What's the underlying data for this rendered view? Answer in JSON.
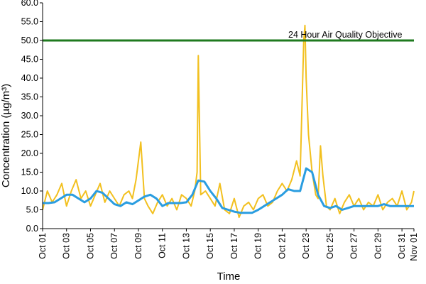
{
  "chart_data": {
    "type": "line",
    "title": "",
    "xlabel": "Time",
    "ylabel": "Concentration (µg/m³)",
    "ylim": [
      0,
      60
    ],
    "y_ticks": [
      "0.0",
      "5.0",
      "10.0",
      "15.0",
      "20.0",
      "25.0",
      "30.0",
      "35.0",
      "40.0",
      "45.0",
      "50.0",
      "55.0",
      "60.0"
    ],
    "x_ticks": [
      "Oct 01",
      "Oct 03",
      "Oct 05",
      "Oct 07",
      "Oct 09",
      "Oct 11",
      "Oct 13",
      "Oct 15",
      "Oct 17",
      "Oct 19",
      "Oct 21",
      "Oct 23",
      "Oct 25",
      "Oct 27",
      "Oct 29",
      "Oct 31",
      "Nov 01"
    ],
    "xlim": [
      "2013-10-01",
      "2013-11-01"
    ],
    "grid": false,
    "reference_line": {
      "label": "24 Hour Air Quality Objective",
      "value": 50,
      "color": "#1f7a1f"
    },
    "series": [
      {
        "name": "",
        "kind": "hourly",
        "color": "#f2c01f",
        "x_days": [
          0,
          0.4,
          0.8,
          1.2,
          1.6,
          2.0,
          2.4,
          2.8,
          3.2,
          3.6,
          4.0,
          4.4,
          4.8,
          5.2,
          5.6,
          6.0,
          6.4,
          6.8,
          7.2,
          7.5,
          7.8,
          8.2,
          8.5,
          8.8,
          9.2,
          9.6,
          10.0,
          10.4,
          10.8,
          11.2,
          11.6,
          12.0,
          12.4,
          12.7,
          12.9,
          13.0,
          13.2,
          13.6,
          14.0,
          14.4,
          14.8,
          15.2,
          15.6,
          16.0,
          16.4,
          16.8,
          17.2,
          17.6,
          18.0,
          18.4,
          18.8,
          19.2,
          19.6,
          20.0,
          20.4,
          20.8,
          21.2,
          21.5,
          21.8,
          21.9,
          22.0,
          22.2,
          22.5,
          22.8,
          23.0,
          23.2,
          23.4,
          23.7,
          24.0,
          24.4,
          24.8,
          25.2,
          25.6,
          26.0,
          26.4,
          26.8,
          27.2,
          27.6,
          28.0,
          28.4,
          28.8,
          29.2,
          29.6,
          30.0,
          30.4,
          30.8,
          31.0
        ],
        "values": [
          5,
          10,
          7,
          9,
          12,
          6,
          10,
          13,
          8,
          10,
          6,
          9,
          12,
          7,
          10,
          8,
          6,
          9,
          10,
          8,
          13,
          23,
          8,
          6,
          4,
          7,
          9,
          6,
          8,
          5,
          9,
          8,
          6,
          10,
          15,
          46,
          9,
          10,
          8,
          6,
          12,
          5,
          4,
          8,
          3,
          6,
          7,
          5,
          8,
          9,
          6,
          7,
          10,
          12,
          10,
          13,
          18,
          14,
          50,
          54,
          40,
          25,
          15,
          9,
          8,
          22,
          14,
          6,
          5,
          8,
          4,
          7,
          9,
          6,
          8,
          5,
          7,
          6,
          9,
          5,
          7,
          8,
          6,
          10,
          5,
          7,
          10
        ]
      },
      {
        "name": "",
        "kind": "rolling_24h_average",
        "color": "#2a9de0",
        "x_days": [
          0,
          0.5,
          1,
          1.5,
          2,
          2.5,
          3,
          3.5,
          4,
          4.5,
          5,
          5.5,
          6,
          6.5,
          7,
          7.5,
          8,
          8.5,
          9,
          9.5,
          10,
          10.5,
          11,
          11.5,
          12,
          12.5,
          13,
          13.5,
          14,
          14.5,
          15,
          15.5,
          16,
          16.5,
          17,
          17.5,
          18,
          18.5,
          19,
          19.5,
          20,
          20.5,
          21,
          21.5,
          22,
          22.5,
          23,
          23.5,
          24,
          24.5,
          25,
          25.5,
          26,
          26.5,
          27,
          27.5,
          28,
          28.5,
          29,
          29.5,
          30,
          30.5,
          31
        ],
        "values": [
          6.8,
          6.8,
          7,
          8,
          9,
          9,
          8,
          7,
          8,
          10,
          9.5,
          8,
          6.5,
          6,
          7,
          6.5,
          7.5,
          8.5,
          9,
          8,
          6,
          6.8,
          6.8,
          6.8,
          7,
          9,
          12.8,
          12.5,
          10,
          8,
          5.5,
          5,
          4.5,
          4.2,
          4.2,
          4.2,
          5,
          6,
          7,
          8,
          9,
          10.5,
          10,
          10,
          16,
          15,
          9,
          6,
          5.5,
          6,
          5,
          5.5,
          6,
          6,
          6,
          6,
          6,
          6.5,
          6,
          6,
          6,
          6,
          6
        ]
      }
    ]
  }
}
